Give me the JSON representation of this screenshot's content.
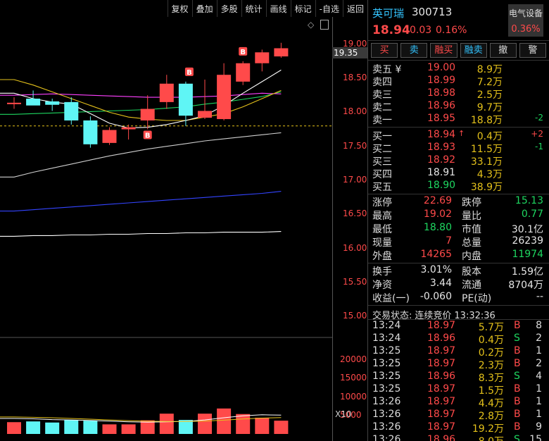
{
  "toolbar": [
    "复权",
    "叠加",
    "多股",
    "统计",
    "画线",
    "标记",
    "-自选",
    "返回"
  ],
  "chart": {
    "current_price_label": "19.35",
    "price_ticks": [
      "19.00",
      "18.50",
      "18.00",
      "17.50",
      "17.00",
      "16.50",
      "16.00",
      "15.50",
      "15.00"
    ],
    "volume_ticks": [
      "20000",
      "15000",
      "10000",
      "5000"
    ],
    "volume_unit": "X10",
    "colors": {
      "up": "#ff4a4a",
      "down": "#5ff5f5",
      "ma5": "#ffffff",
      "ma10": "#e5c21b",
      "ma20": "#ff40ff",
      "ma30": "#1ed760",
      "ma60": "#cfcfcf",
      "ma120": "#3344ff",
      "ma250": "#ffffff"
    }
  },
  "chart_data": {
    "type": "candlestick",
    "candles": [
      {
        "o": 18.12,
        "h": 18.22,
        "l": 18.05,
        "c": 18.14
      },
      {
        "o": 18.2,
        "h": 18.32,
        "l": 18.12,
        "c": 18.1
      },
      {
        "o": 18.16,
        "h": 18.2,
        "l": 18.02,
        "c": 18.11
      },
      {
        "o": 18.15,
        "h": 18.22,
        "l": 17.82,
        "c": 17.88
      },
      {
        "o": 17.88,
        "h": 17.94,
        "l": 17.48,
        "c": 17.53
      },
      {
        "o": 17.55,
        "h": 17.78,
        "l": 17.52,
        "c": 17.74
      },
      {
        "o": 17.75,
        "h": 17.82,
        "l": 17.6,
        "c": 17.78
      },
      {
        "o": 17.88,
        "h": 18.25,
        "l": 17.75,
        "c": 18.05
      },
      {
        "o": 18.15,
        "h": 18.55,
        "l": 18.05,
        "c": 18.42
      },
      {
        "o": 18.42,
        "h": 18.45,
        "l": 17.8,
        "c": 17.95
      },
      {
        "o": 17.92,
        "h": 18.48,
        "l": 17.9,
        "c": 18.02
      },
      {
        "o": 17.9,
        "h": 18.72,
        "l": 17.88,
        "c": 18.55
      },
      {
        "o": 18.45,
        "h": 18.75,
        "l": 18.4,
        "c": 18.72
      },
      {
        "o": 18.72,
        "h": 18.92,
        "l": 18.6,
        "c": 18.88
      },
      {
        "o": 18.82,
        "h": 19.02,
        "l": 18.8,
        "c": 18.94
      }
    ],
    "b_markers": [
      7,
      9,
      12
    ],
    "ma_lines": {
      "ma5": [
        18.28,
        18.2,
        18.15,
        18.12,
        17.98,
        17.84,
        17.77,
        17.78,
        17.82,
        17.88,
        17.95,
        18.1,
        18.28,
        18.45,
        18.62
      ],
      "ma10": [
        18.48,
        18.4,
        18.3,
        18.2,
        18.1,
        18.0,
        17.93,
        17.9,
        17.88,
        17.88,
        17.93,
        17.98,
        18.08,
        18.2,
        18.32
      ],
      "ma20": [
        18.25,
        18.26,
        18.27,
        18.26,
        18.25,
        18.24,
        18.23,
        18.22,
        18.22,
        18.22,
        18.23,
        18.24,
        18.26,
        18.28,
        18.27
      ],
      "ma30": [
        17.97,
        17.98,
        17.99,
        18.0,
        18.01,
        18.02,
        18.03,
        18.04,
        18.06,
        18.08,
        18.12,
        18.15,
        18.19,
        18.23,
        18.3
      ],
      "ma60": [
        17.05,
        17.12,
        17.18,
        17.24,
        17.3,
        17.36,
        17.41,
        17.46,
        17.5,
        17.54,
        17.58,
        17.61,
        17.64,
        17.67,
        17.7
      ],
      "ma120": [
        16.55,
        16.57,
        16.59,
        16.61,
        16.63,
        16.65,
        16.67,
        16.69,
        16.71,
        16.73,
        16.75,
        16.77,
        16.79,
        16.81,
        16.84
      ],
      "ma250": [
        16.18,
        16.19,
        16.19,
        16.2,
        16.2,
        16.21,
        16.21,
        16.22,
        16.22,
        16.23,
        16.23,
        16.24,
        16.24,
        16.24,
        16.25
      ]
    },
    "ref_line": 17.8,
    "ylim": [
      14.85,
      19.4
    ],
    "volume": {
      "values": [
        3200,
        3400,
        3100,
        3800,
        3600,
        2600,
        2600,
        3700,
        5500,
        3800,
        5500,
        6900,
        5400,
        4400,
        3600
      ],
      "ylim": [
        0,
        21000
      ],
      "ma_a": [
        4200,
        4100,
        3900,
        3800,
        3650,
        3500,
        3300,
        3200,
        3300,
        3400,
        3800,
        4400,
        4900,
        5200,
        5100
      ],
      "ma_b": [
        4600,
        4500,
        4400,
        4200,
        4000,
        3800,
        3600,
        3450,
        3400,
        3400,
        3500,
        3750,
        4050,
        4300,
        4450
      ]
    }
  },
  "header": {
    "name": "英可瑞",
    "code": "300713",
    "sector_name": "电气设备",
    "sector_pct": "0.36%",
    "price": "18.94",
    "change": "0.03",
    "change_pct": "0.16%"
  },
  "buttons": [
    {
      "label": "买",
      "color": "#ff4a4a"
    },
    {
      "label": "卖",
      "color": "#33c4ff"
    },
    {
      "label": "融买",
      "color": "#ff4a4a"
    },
    {
      "label": "融卖",
      "color": "#33c4ff"
    },
    {
      "label": "撤",
      "color": "#dddddd"
    },
    {
      "label": "警",
      "color": "#dddddd"
    }
  ],
  "asks": [
    {
      "label": "卖五 ¥",
      "price": "19.00",
      "vol": "8.9万",
      "diff": ""
    },
    {
      "label": "卖四",
      "price": "18.99",
      "vol": "7.2万",
      "diff": ""
    },
    {
      "label": "卖三",
      "price": "18.98",
      "vol": "2.5万",
      "diff": ""
    },
    {
      "label": "卖二",
      "price": "18.96",
      "vol": "9.7万",
      "diff": ""
    },
    {
      "label": "卖一",
      "price": "18.95",
      "vol": "18.8万",
      "diff": "-2"
    }
  ],
  "bids": [
    {
      "label": "买一",
      "price": "18.94",
      "vol": "0.4万",
      "diff": "+2"
    },
    {
      "label": "买二",
      "price": "18.93",
      "vol": "11.5万",
      "diff": "-1"
    },
    {
      "label": "买三",
      "price": "18.92",
      "vol": "33.1万",
      "diff": ""
    },
    {
      "label": "买四",
      "price": "18.91",
      "vol": "4.3万",
      "diff": ""
    },
    {
      "label": "买五",
      "price": "18.90",
      "vol": "38.9万",
      "diff": ""
    }
  ],
  "stats1": [
    {
      "l1": "涨停",
      "v1": "22.69",
      "c1": "red",
      "l2": "跌停",
      "v2": "15.13",
      "c2": "green"
    },
    {
      "l1": "最高",
      "v1": "19.02",
      "c1": "red",
      "l2": "量比",
      "v2": "0.77",
      "c2": "green"
    },
    {
      "l1": "最低",
      "v1": "18.80",
      "c1": "green",
      "l2": "市值",
      "v2": "30.1亿",
      "c2": "white"
    },
    {
      "l1": "现量",
      "v1": "7",
      "c1": "red",
      "l2": "总量",
      "v2": "26239",
      "c2": "white"
    },
    {
      "l1": "外盘",
      "v1": "14265",
      "c1": "red",
      "l2": "内盘",
      "v2": "11974",
      "c2": "green"
    }
  ],
  "stats2": [
    {
      "l1": "换手",
      "v1": "3.01%",
      "c1": "white",
      "l2": "股本",
      "v2": "1.59亿",
      "c2": "white"
    },
    {
      "l1": "净资",
      "v1": "3.44",
      "c1": "white",
      "l2": "流通",
      "v2": "8704万",
      "c2": "white"
    },
    {
      "l1": "收益(一)",
      "v1": "-0.060",
      "c1": "white",
      "l2": "PE(动)",
      "v2": "--",
      "c2": "white"
    }
  ],
  "status": {
    "label": "交易状态:",
    "state": "连续竞价",
    "time": "13:32:36"
  },
  "ticks": [
    {
      "t": "13:24",
      "p": "18.97",
      "v": "5.7万",
      "s": "B",
      "n": "8"
    },
    {
      "t": "13:24",
      "p": "18.96",
      "v": "0.4万",
      "s": "S",
      "n": "2"
    },
    {
      "t": "13:25",
      "p": "18.97",
      "v": "0.2万",
      "s": "B",
      "n": "1"
    },
    {
      "t": "13:25",
      "p": "18.97",
      "v": "2.3万",
      "s": "B",
      "n": "2"
    },
    {
      "t": "13:25",
      "p": "18.96",
      "v": "8.3万",
      "s": "S",
      "n": "4"
    },
    {
      "t": "13:25",
      "p": "18.97",
      "v": "1.5万",
      "s": "B",
      "n": "1"
    },
    {
      "t": "13:26",
      "p": "18.97",
      "v": "4.4万",
      "s": "B",
      "n": "1"
    },
    {
      "t": "13:26",
      "p": "18.97",
      "v": "2.8万",
      "s": "B",
      "n": "1"
    },
    {
      "t": "13:26",
      "p": "18.97",
      "v": "19.2万",
      "s": "B",
      "n": "9"
    },
    {
      "t": "13:26",
      "p": "18.96",
      "v": "8.0万",
      "s": "S",
      "n": "15"
    }
  ]
}
